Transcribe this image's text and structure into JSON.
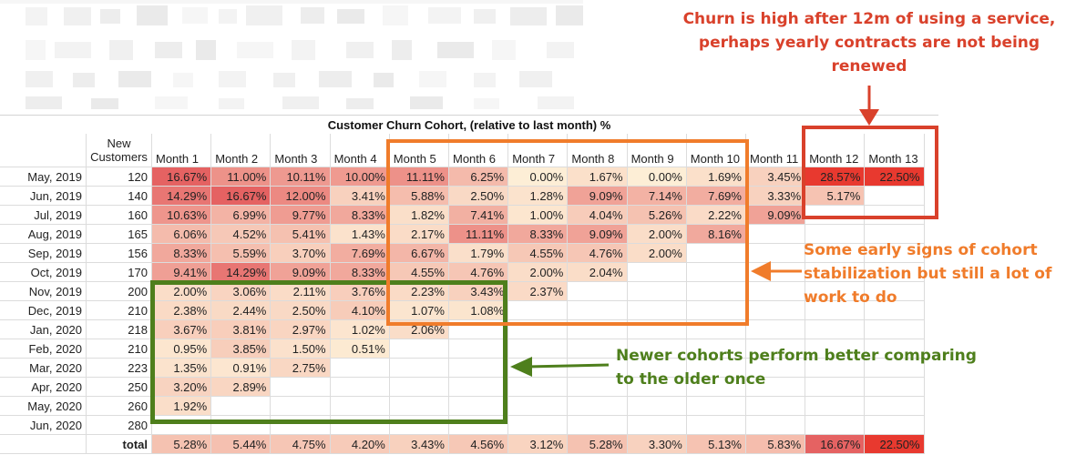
{
  "title": "Customer Churn Cohort, (relative to last month) %",
  "header": {
    "new_customers": "New\nCustomers",
    "months": [
      "Month 1",
      "Month 2",
      "Month 3",
      "Month 4",
      "Month 5",
      "Month 6",
      "Month 7",
      "Month 8",
      "Month 9",
      "Month 10",
      "Month 11",
      "Month 12",
      "Month 13"
    ]
  },
  "rows": [
    {
      "label": "May, 2019",
      "new": "120",
      "values": [
        "16.67%",
        "11.00%",
        "10.11%",
        "10.00%",
        "11.11%",
        "6.25%",
        "0.00%",
        "1.67%",
        "0.00%",
        "1.69%",
        "3.45%",
        "28.57%",
        "22.50%"
      ]
    },
    {
      "label": "Jun, 2019",
      "new": "140",
      "values": [
        "14.29%",
        "16.67%",
        "12.00%",
        "3.41%",
        "5.88%",
        "2.50%",
        "1.28%",
        "9.09%",
        "7.14%",
        "7.69%",
        "3.33%",
        "5.17%",
        ""
      ]
    },
    {
      "label": "Jul, 2019",
      "new": "160",
      "values": [
        "10.63%",
        "6.99%",
        "9.77%",
        "8.33%",
        "1.82%",
        "7.41%",
        "1.00%",
        "4.04%",
        "5.26%",
        "2.22%",
        "9.09%",
        "",
        ""
      ]
    },
    {
      "label": "Aug, 2019",
      "new": "165",
      "values": [
        "6.06%",
        "4.52%",
        "5.41%",
        "1.43%",
        "2.17%",
        "11.11%",
        "8.33%",
        "9.09%",
        "2.00%",
        "8.16%",
        "",
        "",
        ""
      ]
    },
    {
      "label": "Sep, 2019",
      "new": "156",
      "values": [
        "8.33%",
        "5.59%",
        "3.70%",
        "7.69%",
        "6.67%",
        "1.79%",
        "4.55%",
        "4.76%",
        "2.00%",
        "",
        "",
        "",
        ""
      ]
    },
    {
      "label": "Oct, 2019",
      "new": "170",
      "values": [
        "9.41%",
        "14.29%",
        "9.09%",
        "8.33%",
        "4.55%",
        "4.76%",
        "2.00%",
        "2.04%",
        "",
        "",
        "",
        "",
        ""
      ]
    },
    {
      "label": "Nov, 2019",
      "new": "200",
      "values": [
        "2.00%",
        "3.06%",
        "2.11%",
        "3.76%",
        "2.23%",
        "3.43%",
        "2.37%",
        "",
        "",
        "",
        "",
        "",
        ""
      ]
    },
    {
      "label": "Dec, 2019",
      "new": "210",
      "values": [
        "2.38%",
        "2.44%",
        "2.50%",
        "4.10%",
        "1.07%",
        "1.08%",
        "",
        "",
        "",
        "",
        "",
        "",
        ""
      ]
    },
    {
      "label": "Jan, 2020",
      "new": "218",
      "values": [
        "3.67%",
        "3.81%",
        "2.97%",
        "1.02%",
        "2.06%",
        "",
        "",
        "",
        "",
        "",
        "",
        "",
        ""
      ]
    },
    {
      "label": "Feb, 2020",
      "new": "210",
      "values": [
        "0.95%",
        "3.85%",
        "1.50%",
        "0.51%",
        "",
        "",
        "",
        "",
        "",
        "",
        "",
        "",
        ""
      ]
    },
    {
      "label": "Mar, 2020",
      "new": "223",
      "values": [
        "1.35%",
        "0.91%",
        "2.75%",
        "",
        "",
        "",
        "",
        "",
        "",
        "",
        "",
        "",
        ""
      ]
    },
    {
      "label": "Apr, 2020",
      "new": "250",
      "values": [
        "3.20%",
        "2.89%",
        "",
        "",
        "",
        "",
        "",
        "",
        "",
        "",
        "",
        "",
        ""
      ]
    },
    {
      "label": "May, 2020",
      "new": "260",
      "values": [
        "1.92%",
        "",
        "",
        "",
        "",
        "",
        "",
        "",
        "",
        "",
        "",
        "",
        ""
      ]
    },
    {
      "label": "Jun, 2020",
      "new": "280",
      "values": [
        "",
        "",
        "",
        "",
        "",
        "",
        "",
        "",
        "",
        "",
        "",
        "",
        ""
      ]
    }
  ],
  "total": {
    "label": "total",
    "values": [
      "5.28%",
      "5.44%",
      "4.75%",
      "4.20%",
      "3.43%",
      "4.56%",
      "3.12%",
      "5.28%",
      "3.30%",
      "5.13%",
      "5.83%",
      "16.67%",
      "22.50%"
    ]
  },
  "annotations": {
    "red": "Churn is high after 12m of using a service, perhaps yearly contracts are not being renewed",
    "orange": "Some early signs of cohort stabilization but still a lot of work to do",
    "green": "Newer cohorts perform better comparing to the older once"
  },
  "colors": {
    "red": "#d9412b",
    "orange": "#f07c2b",
    "green": "#4e7f1c",
    "heat_low": "#fdf0d8",
    "heat_high": "#e25a5a",
    "heat_max": "#e8392f"
  }
}
